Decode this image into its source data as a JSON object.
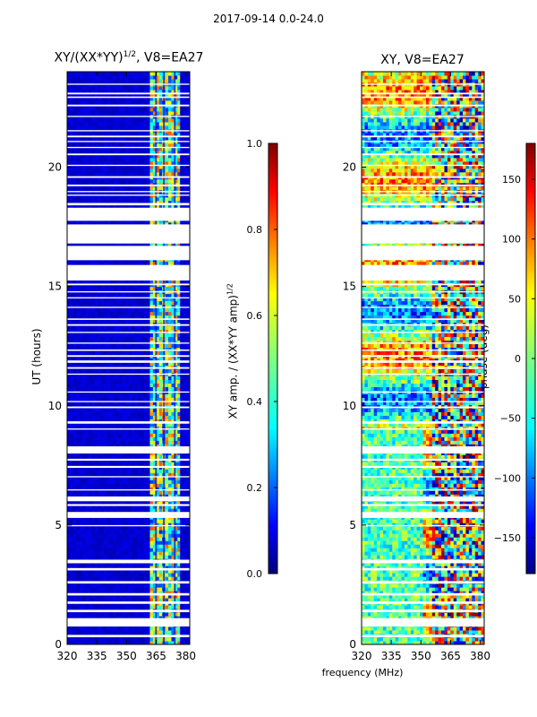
{
  "suptitle": "2017-09-14 0.0-24.0",
  "chart_data": [
    {
      "type": "heatmap",
      "title_prefix": "XY/(XX*YY)",
      "title_exp": "1/2",
      "title_suffix": ", V8=EA27",
      "xlabel": "",
      "ylabel": "UT (hours)",
      "xlim": [
        320,
        382
      ],
      "ylim": [
        0,
        24
      ],
      "xticks": [
        320,
        335,
        350,
        365,
        380
      ],
      "yticks": [
        0,
        5,
        10,
        15,
        20
      ],
      "colorbar": {
        "label_prefix": "XY amp. / (XX*YY amp)",
        "label_exp": "1/2",
        "range": [
          0.0,
          1.0
        ],
        "ticks": [
          "0.0",
          "0.2",
          "0.4",
          "0.6",
          "0.8",
          "1.0"
        ],
        "colormap": "jet"
      },
      "description_values": {
        "background_level": 0.08,
        "active_band_MHz": [
          361,
          376
        ],
        "active_band_level": 0.45
      }
    },
    {
      "type": "heatmap",
      "title": "XY, V8=EA27",
      "xlabel": "frequency (MHz)",
      "ylabel": "",
      "xlim": [
        320,
        382
      ],
      "ylim": [
        0,
        24
      ],
      "xticks": [
        320,
        335,
        350,
        365,
        380
      ],
      "yticks": [
        0,
        5,
        10,
        15,
        20
      ],
      "colorbar": {
        "label": "phase (deg)",
        "range": [
          -180,
          180
        ],
        "ticks": [
          "150",
          "100",
          "50",
          "0",
          "−50",
          "−100",
          "−150"
        ],
        "colormap": "jet"
      }
    }
  ],
  "flagged_hours": [
    [
      0.3,
      0.4
    ],
    [
      0.75,
      1.1
    ],
    [
      1.35,
      1.45
    ],
    [
      1.7,
      1.8
    ],
    [
      2.05,
      2.15
    ],
    [
      2.55,
      2.65
    ],
    [
      3.1,
      3.2
    ],
    [
      3.4,
      3.55
    ],
    [
      4.95,
      5.0
    ],
    [
      5.3,
      5.55
    ],
    [
      5.8,
      5.88
    ],
    [
      6.0,
      6.2
    ],
    [
      6.45,
      6.5
    ],
    [
      7.0,
      7.05
    ],
    [
      7.4,
      7.48
    ],
    [
      7.7,
      7.78
    ],
    [
      8.0,
      8.3
    ],
    [
      9.0,
      9.05
    ],
    [
      9.25,
      9.35
    ],
    [
      9.9,
      9.97
    ],
    [
      10.15,
      10.2
    ],
    [
      10.55,
      10.6
    ],
    [
      11.3,
      11.35
    ],
    [
      11.55,
      11.62
    ],
    [
      11.8,
      11.9
    ],
    [
      12.05,
      12.12
    ],
    [
      12.3,
      12.36
    ],
    [
      12.6,
      12.65
    ],
    [
      13.05,
      13.1
    ],
    [
      13.35,
      13.42
    ],
    [
      13.6,
      13.66
    ],
    [
      14.1,
      14.15
    ],
    [
      14.5,
      14.55
    ],
    [
      14.75,
      14.8
    ],
    [
      15.05,
      15.12
    ],
    [
      15.25,
      15.9
    ],
    [
      16.1,
      16.7
    ],
    [
      16.8,
      17.6
    ],
    [
      17.75,
      18.3
    ],
    [
      18.4,
      18.5
    ],
    [
      18.8,
      18.85
    ],
    [
      18.95,
      19.0
    ],
    [
      19.2,
      19.27
    ],
    [
      19.55,
      19.62
    ],
    [
      20.05,
      20.1
    ],
    [
      20.5,
      20.57
    ],
    [
      20.8,
      20.85
    ],
    [
      21.05,
      21.1
    ],
    [
      21.25,
      21.32
    ],
    [
      21.5,
      21.55
    ],
    [
      22.1,
      22.15
    ],
    [
      22.55,
      22.62
    ],
    [
      22.9,
      22.96
    ],
    [
      23.05,
      23.12
    ],
    [
      23.45,
      23.5
    ]
  ]
}
